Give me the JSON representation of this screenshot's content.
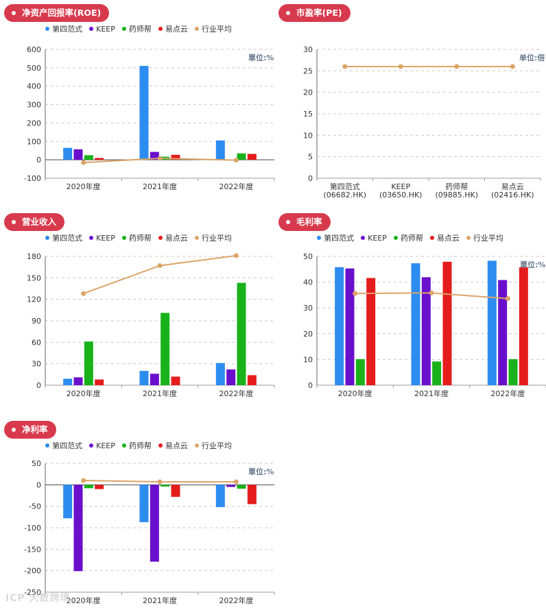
{
  "colors": {
    "series": [
      "#2d8cf0",
      "#6a0fcc",
      "#19b21a",
      "#e51c1c",
      "#dba468"
    ],
    "tag": "#d83a4d"
  },
  "legend_labels": [
    "第四范式",
    "KEEP",
    "药师帮",
    "易点云",
    "行业平均"
  ],
  "watermark": "ICP 大数跨境",
  "chart_data": [
    {
      "id": "roe",
      "type": "bar",
      "title": "净资产回报率(ROE)",
      "unit_label": "單位:%",
      "categories": [
        "2020年度",
        "2021年度",
        "2022年度"
      ],
      "ylim": [
        -100,
        600
      ],
      "yticks": [
        -100,
        0,
        100,
        200,
        300,
        400,
        500,
        600
      ],
      "series": [
        {
          "name": "第四范式",
          "values": [
            65,
            510,
            105
          ]
        },
        {
          "name": "KEEP",
          "values": [
            57,
            43,
            0
          ]
        },
        {
          "name": "药师帮",
          "values": [
            25,
            17,
            35
          ]
        },
        {
          "name": "易点云",
          "values": [
            10,
            27,
            32
          ]
        }
      ],
      "line": {
        "name": "行业平均",
        "values": [
          -15,
          8,
          -2
        ]
      }
    },
    {
      "id": "pe",
      "type": "line",
      "title": "市盈率(PE)",
      "unit_label": "单位:倍",
      "categories": [
        "第四范式|(06682.HK)",
        "KEEP|(03650.HK)",
        "药师帮|(09885.HK)",
        "易点云|(02416.HK)"
      ],
      "ylim": [
        0,
        30
      ],
      "yticks": [
        0,
        5,
        10,
        15,
        20,
        25,
        30
      ],
      "series": [],
      "line": {
        "name": "行业平均",
        "values": [
          26,
          26,
          26,
          26
        ]
      }
    },
    {
      "id": "revenue",
      "type": "bar",
      "title": "营业收入",
      "unit_label": "",
      "categories": [
        "2020年度",
        "2021年度",
        "2022年度"
      ],
      "ylim": [
        0,
        180
      ],
      "yticks": [
        0,
        30,
        60,
        90,
        120,
        150,
        180
      ],
      "series": [
        {
          "name": "第四范式",
          "values": [
            9,
            20,
            31
          ]
        },
        {
          "name": "KEEP",
          "values": [
            11,
            16,
            22
          ]
        },
        {
          "name": "药师帮",
          "values": [
            61,
            101,
            143
          ]
        },
        {
          "name": "易点云",
          "values": [
            8,
            12,
            14
          ]
        }
      ],
      "line": {
        "name": "行业平均",
        "values": [
          128,
          167,
          181
        ]
      }
    },
    {
      "id": "gross_margin",
      "type": "bar",
      "title": "毛利率",
      "unit_label": "單位:%",
      "categories": [
        "2020年度",
        "2021年度",
        "2022年度"
      ],
      "ylim": [
        0,
        50
      ],
      "yticks": [
        0,
        10,
        20,
        30,
        40,
        50
      ],
      "series": [
        {
          "name": "第四范式",
          "values": [
            45.8,
            47.3,
            48.3
          ]
        },
        {
          "name": "KEEP",
          "values": [
            45.3,
            41.9,
            40.8
          ]
        },
        {
          "name": "药师帮",
          "values": [
            10.1,
            9.2,
            10.1
          ]
        },
        {
          "name": "易点云",
          "values": [
            41.6,
            47.9,
            45.7
          ]
        }
      ],
      "line": {
        "name": "行业平均",
        "values": [
          35.6,
          35.8,
          33.6
        ]
      }
    },
    {
      "id": "net_margin",
      "type": "bar",
      "title": "净利率",
      "unit_label": "單位:%",
      "categories": [
        "2020年度",
        "2021年度",
        "2022年度"
      ],
      "ylim": [
        -250,
        50
      ],
      "yticks": [
        -250,
        -200,
        -150,
        -100,
        -50,
        0,
        50
      ],
      "series": [
        {
          "name": "第四范式",
          "values": [
            -78,
            -87,
            -52
          ]
        },
        {
          "name": "KEEP",
          "values": [
            -201,
            -179,
            -5
          ]
        },
        {
          "name": "药师帮",
          "values": [
            -8,
            -4,
            -9
          ]
        },
        {
          "name": "易点云",
          "values": [
            -10,
            -28,
            -45
          ]
        }
      ],
      "line": {
        "name": "行业平均",
        "values": [
          10,
          7,
          7
        ]
      }
    }
  ]
}
